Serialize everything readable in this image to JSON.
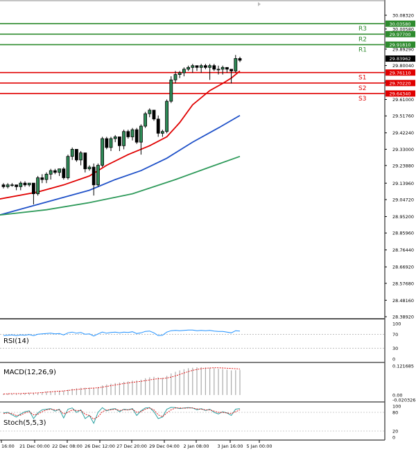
{
  "chart_data": {
    "type": "candlestick",
    "price_axis": {
      "ticks": [
        "30.08320",
        "30.00580",
        "29.89290",
        "29.80040",
        "29.70780",
        "29.61000",
        "29.51760",
        "29.42240",
        "29.33000",
        "29.23880",
        "29.13960",
        "29.04720",
        "28.95200",
        "28.85960",
        "28.76440",
        "28.66920",
        "28.57680",
        "28.48160",
        "28.38920"
      ]
    },
    "time_axis": {
      "labels": [
        "16:00",
        "21 Dec 00:00",
        "22 Dec 08:00",
        "26 Dec 12:00",
        "27 Dec 20:00",
        "29 Dec 04:00",
        "2 Jan 08:00",
        "3 Jan 16:00",
        "5 Jan 00:00"
      ]
    },
    "levels": [
      {
        "name": "R3",
        "price": 30.0358,
        "tag": "30.03580",
        "color": "#2e8b2e"
      },
      {
        "name": "R2",
        "price": 29.977,
        "tag": "29.97700",
        "color": "#2e8b2e"
      },
      {
        "name": "R1",
        "price": 29.9181,
        "tag": "29.91810",
        "color": "#2e8b2e"
      },
      {
        "name": "S1",
        "price": 29.7611,
        "tag": "29.76110",
        "color": "#e00000"
      },
      {
        "name": "S2",
        "price": 29.7022,
        "tag": "29.70220",
        "color": "#e00000"
      },
      {
        "name": "S3",
        "price": 29.6434,
        "tag": "29.64340",
        "color": "#e00000"
      }
    ],
    "current_price": "29.83962",
    "candles": [
      [
        29.13,
        29.14,
        29.11,
        29.12
      ],
      [
        29.12,
        29.14,
        29.11,
        29.13
      ],
      [
        29.13,
        29.14,
        29.12,
        29.13
      ],
      [
        29.13,
        29.13,
        29.1,
        29.12
      ],
      [
        29.12,
        29.15,
        29.1,
        29.14
      ],
      [
        29.14,
        29.15,
        29.12,
        29.13
      ],
      [
        29.13,
        29.14,
        29.12,
        29.14
      ],
      [
        29.14,
        29.14,
        29.02,
        29.08
      ],
      [
        29.08,
        29.18,
        29.07,
        29.17
      ],
      [
        29.17,
        29.19,
        29.14,
        29.16
      ],
      [
        29.16,
        29.2,
        29.14,
        29.19
      ],
      [
        29.19,
        29.22,
        29.16,
        29.21
      ],
      [
        29.21,
        29.22,
        29.19,
        29.2
      ],
      [
        29.2,
        29.22,
        29.18,
        29.22
      ],
      [
        29.22,
        29.23,
        29.16,
        29.17
      ],
      [
        29.17,
        29.3,
        29.16,
        29.29
      ],
      [
        29.29,
        29.34,
        29.27,
        29.33
      ],
      [
        29.33,
        29.33,
        29.26,
        29.27
      ],
      [
        29.27,
        29.32,
        29.24,
        29.31
      ],
      [
        29.31,
        29.31,
        29.2,
        29.22
      ],
      [
        29.22,
        29.24,
        29.21,
        29.23
      ],
      [
        29.23,
        29.25,
        29.07,
        29.13
      ],
      [
        29.13,
        29.25,
        29.12,
        29.24
      ],
      [
        29.24,
        29.4,
        29.23,
        29.39
      ],
      [
        29.39,
        29.4,
        29.33,
        29.34
      ],
      [
        29.34,
        29.4,
        29.32,
        29.39
      ],
      [
        29.39,
        29.41,
        29.37,
        29.4
      ],
      [
        29.4,
        29.4,
        29.32,
        29.35
      ],
      [
        29.35,
        29.44,
        29.33,
        29.43
      ],
      [
        29.43,
        29.44,
        29.39,
        29.4
      ],
      [
        29.4,
        29.45,
        29.38,
        29.44
      ],
      [
        29.44,
        29.45,
        29.36,
        29.37
      ],
      [
        29.37,
        29.47,
        29.3,
        29.46
      ],
      [
        29.46,
        29.54,
        29.45,
        29.53
      ],
      [
        29.53,
        29.56,
        29.51,
        29.55
      ],
      [
        29.55,
        29.55,
        29.49,
        29.5
      ],
      [
        29.5,
        29.52,
        29.4,
        29.42
      ],
      [
        29.42,
        29.44,
        29.4,
        29.43
      ],
      [
        29.43,
        29.61,
        29.42,
        29.6
      ],
      [
        29.6,
        29.74,
        29.59,
        29.72
      ],
      [
        29.72,
        29.77,
        29.7,
        29.75
      ],
      [
        29.75,
        29.77,
        29.73,
        29.76
      ],
      [
        29.76,
        29.79,
        29.74,
        29.78
      ],
      [
        29.78,
        29.8,
        29.77,
        29.79
      ],
      [
        29.79,
        29.81,
        29.76,
        29.8
      ],
      [
        29.8,
        29.8,
        29.77,
        29.79
      ],
      [
        29.79,
        29.81,
        29.76,
        29.8
      ],
      [
        29.8,
        29.81,
        29.78,
        29.79
      ],
      [
        29.79,
        29.81,
        29.72,
        29.8
      ],
      [
        29.8,
        29.81,
        29.77,
        29.78
      ],
      [
        29.78,
        29.8,
        29.75,
        29.78
      ],
      [
        29.78,
        29.8,
        29.75,
        29.79
      ],
      [
        29.79,
        29.79,
        29.76,
        29.78
      ],
      [
        29.78,
        29.78,
        29.7,
        29.77
      ],
      [
        29.77,
        29.86,
        29.76,
        29.84
      ],
      [
        29.84,
        29.85,
        29.82,
        29.83
      ]
    ],
    "moving_averages": [
      {
        "color": "#e00000",
        "points": [
          [
            -1,
            29.05
          ],
          [
            8,
            29.09
          ],
          [
            14,
            29.13
          ],
          [
            20,
            29.18
          ],
          [
            24,
            29.24
          ],
          [
            29,
            29.3
          ],
          [
            34,
            29.35
          ],
          [
            38,
            29.4
          ],
          [
            41,
            29.48
          ],
          [
            44,
            29.58
          ],
          [
            48,
            29.66
          ],
          [
            51,
            29.7
          ],
          [
            53,
            29.73
          ],
          [
            55,
            29.77
          ]
        ]
      },
      {
        "color": "#1e50c8",
        "points": [
          [
            -1,
            28.96
          ],
          [
            8,
            29.02
          ],
          [
            14,
            29.06
          ],
          [
            20,
            29.1
          ],
          [
            26,
            29.16
          ],
          [
            32,
            29.21
          ],
          [
            38,
            29.28
          ],
          [
            44,
            29.37
          ],
          [
            50,
            29.45
          ],
          [
            55,
            29.52
          ]
        ]
      },
      {
        "color": "#2e9a5a",
        "points": [
          [
            -1,
            28.96
          ],
          [
            10,
            28.99
          ],
          [
            20,
            29.03
          ],
          [
            30,
            29.08
          ],
          [
            40,
            29.16
          ],
          [
            48,
            29.23
          ],
          [
            55,
            29.29
          ]
        ]
      }
    ],
    "rsi": {
      "label": "RSI(14)",
      "ticks": [
        "100",
        "70",
        "30",
        "0"
      ],
      "levels": [
        70,
        30
      ],
      "values": [
        66,
        67,
        68,
        66,
        68,
        67,
        69,
        66,
        70,
        71,
        72,
        73,
        71,
        72,
        68,
        74,
        76,
        73,
        75,
        70,
        71,
        65,
        71,
        76,
        73,
        75,
        76,
        74,
        76,
        75,
        77,
        72,
        74,
        78,
        79,
        74,
        66,
        67,
        76,
        80,
        81,
        80,
        81,
        82,
        82,
        80,
        81,
        80,
        81,
        79,
        78,
        78,
        76,
        74,
        80,
        79
      ]
    },
    "macd": {
      "label": "MACD(12,26,9)",
      "ticks": [
        "0.121685",
        "0.00",
        "-0.020326"
      ],
      "histogram": [
        0.005,
        0.006,
        0.007,
        0.006,
        0.007,
        0.008,
        0.009,
        0.008,
        0.01,
        0.012,
        0.014,
        0.016,
        0.017,
        0.018,
        0.018,
        0.022,
        0.026,
        0.028,
        0.03,
        0.03,
        0.031,
        0.03,
        0.033,
        0.04,
        0.044,
        0.047,
        0.05,
        0.052,
        0.055,
        0.057,
        0.06,
        0.061,
        0.064,
        0.07,
        0.074,
        0.076,
        0.074,
        0.072,
        0.08,
        0.09,
        0.097,
        0.103,
        0.108,
        0.112,
        0.114,
        0.116,
        0.116,
        0.115,
        0.114,
        0.112,
        0.11,
        0.108,
        0.106,
        0.103,
        0.104,
        0.105
      ],
      "signal": [
        0.004,
        0.005,
        0.006,
        0.006,
        0.006,
        0.007,
        0.008,
        0.008,
        0.009,
        0.01,
        0.012,
        0.013,
        0.015,
        0.016,
        0.017,
        0.019,
        0.021,
        0.023,
        0.025,
        0.027,
        0.028,
        0.029,
        0.03,
        0.033,
        0.036,
        0.039,
        0.042,
        0.045,
        0.048,
        0.05,
        0.053,
        0.055,
        0.057,
        0.06,
        0.063,
        0.066,
        0.068,
        0.069,
        0.071,
        0.075,
        0.08,
        0.086,
        0.092,
        0.098,
        0.103,
        0.107,
        0.11,
        0.112,
        0.113,
        0.114,
        0.114,
        0.113,
        0.112,
        0.111,
        0.11,
        0.109
      ]
    },
    "stoch": {
      "label": "Stoch(5,5,3)",
      "ticks": [
        "100",
        "80",
        "20",
        "0"
      ],
      "levels": [
        80,
        20
      ],
      "main": [
        78,
        80,
        72,
        65,
        75,
        82,
        85,
        60,
        78,
        88,
        90,
        92,
        84,
        90,
        62,
        90,
        94,
        80,
        88,
        60,
        70,
        45,
        80,
        95,
        85,
        90,
        92,
        82,
        90,
        88,
        92,
        70,
        85,
        94,
        95,
        82,
        60,
        65,
        90,
        96,
        95,
        92,
        94,
        95,
        94,
        88,
        92,
        86,
        90,
        80,
        75,
        82,
        78,
        70,
        90,
        92
      ],
      "signal": [
        76,
        78,
        76,
        70,
        71,
        78,
        82,
        72,
        74,
        82,
        88,
        90,
        88,
        88,
        75,
        80,
        88,
        86,
        86,
        74,
        70,
        58,
        66,
        82,
        88,
        88,
        90,
        86,
        88,
        88,
        90,
        80,
        82,
        90,
        94,
        88,
        72,
        66,
        78,
        88,
        94,
        94,
        93,
        94,
        94,
        91,
        90,
        88,
        88,
        84,
        80,
        80,
        78,
        76,
        82,
        88
      ]
    }
  }
}
